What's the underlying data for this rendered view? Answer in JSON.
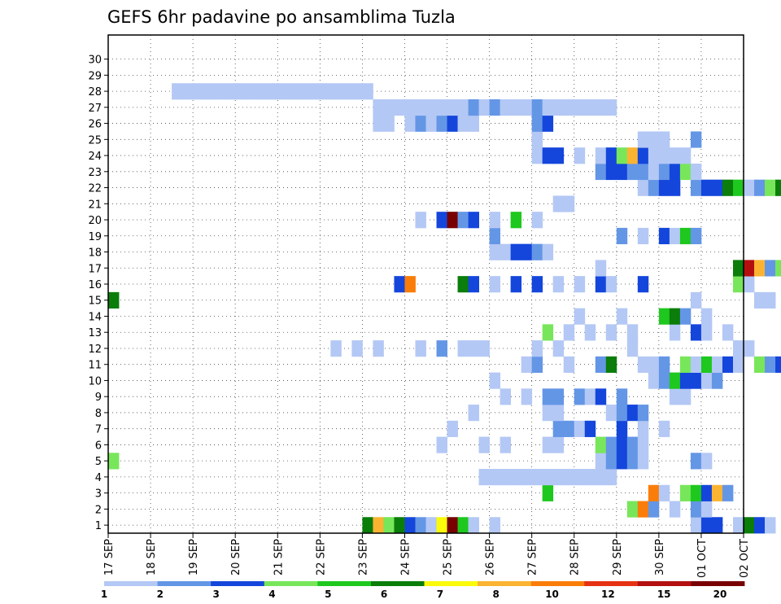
{
  "chart_data": {
    "type": "heatmap",
    "title": "GEFS 6hr padavine po ansamblima Tuzla",
    "xlabel": "",
    "ylabel": "",
    "x_start": "17 SEP",
    "x_end": "02 OCT",
    "x_step_hours": 6,
    "x_tick_labels": [
      "17 SEP",
      "18 SEP",
      "19 SEP",
      "20 SEP",
      "21 SEP",
      "22 SEP",
      "23 SEP",
      "24 SEP",
      "25 SEP",
      "26 SEP",
      "27 SEP",
      "28 SEP",
      "29 SEP",
      "30 SEP",
      "01 OCT",
      "02 OCT"
    ],
    "y_tick_labels": [
      "1",
      "2",
      "3",
      "4",
      "5",
      "6",
      "7",
      "8",
      "9",
      "10",
      "11",
      "12",
      "13",
      "14",
      "15",
      "16",
      "17",
      "18",
      "19",
      "20",
      "21",
      "22",
      "23",
      "24",
      "25",
      "26",
      "27",
      "28",
      "29",
      "30"
    ],
    "ylim": [
      0,
      30
    ],
    "grid": true,
    "colorbar": {
      "placement": "bottom",
      "tick_labels": [
        "1",
        "2",
        "3",
        "4",
        "5",
        "6",
        "7",
        "8",
        "10",
        "12",
        "15",
        "20"
      ],
      "colors": [
        "#b4c8f5",
        "#6496e6",
        "#1446dc",
        "#78e65a",
        "#1ec81e",
        "#0a7d0a",
        "#fafa0a",
        "#fab432",
        "#fa7d0a",
        "#e63214",
        "#b40f0f",
        "#780000"
      ]
    },
    "cells": [
      [
        1,
        24,
        6
      ],
      [
        1,
        25,
        8
      ],
      [
        1,
        26,
        4
      ],
      [
        1,
        27,
        6
      ],
      [
        1,
        28,
        3
      ],
      [
        1,
        29,
        2
      ],
      [
        1,
        30,
        1
      ],
      [
        1,
        31,
        7
      ],
      [
        1,
        32,
        12
      ],
      [
        1,
        33,
        5
      ],
      [
        1,
        34,
        1
      ],
      [
        1,
        36,
        1
      ],
      [
        1,
        55,
        1
      ],
      [
        1,
        56,
        3
      ],
      [
        1,
        57,
        3
      ],
      [
        1,
        59,
        1
      ],
      [
        1,
        60,
        6
      ],
      [
        1,
        61,
        3
      ],
      [
        1,
        62,
        1
      ],
      [
        1,
        64,
        1
      ],
      [
        1,
        65,
        1
      ],
      [
        1,
        66,
        1
      ],
      [
        1,
        67,
        2
      ],
      [
        1,
        68,
        1
      ],
      [
        1,
        69,
        1
      ],
      [
        2,
        49,
        4
      ],
      [
        2,
        50,
        9
      ],
      [
        2,
        51,
        2
      ],
      [
        2,
        53,
        1
      ],
      [
        2,
        55,
        2
      ],
      [
        2,
        56,
        1
      ],
      [
        3,
        41,
        5
      ],
      [
        3,
        51,
        9
      ],
      [
        3,
        52,
        1
      ],
      [
        3,
        54,
        4
      ],
      [
        3,
        55,
        5
      ],
      [
        3,
        56,
        3
      ],
      [
        3,
        57,
        8
      ],
      [
        3,
        58,
        2
      ],
      [
        4,
        35,
        1
      ],
      [
        4,
        36,
        1
      ],
      [
        4,
        37,
        1
      ],
      [
        4,
        38,
        1
      ],
      [
        4,
        39,
        1
      ],
      [
        4,
        40,
        1
      ],
      [
        4,
        41,
        1
      ],
      [
        4,
        42,
        1
      ],
      [
        4,
        43,
        1
      ],
      [
        4,
        44,
        1
      ],
      [
        4,
        45,
        1
      ],
      [
        4,
        46,
        1
      ],
      [
        4,
        47,
        1
      ],
      [
        5,
        0,
        4
      ],
      [
        5,
        46,
        1
      ],
      [
        5,
        47,
        2
      ],
      [
        5,
        48,
        3
      ],
      [
        5,
        49,
        2
      ],
      [
        5,
        50,
        1
      ],
      [
        5,
        55,
        2
      ],
      [
        5,
        56,
        1
      ],
      [
        6,
        31,
        1
      ],
      [
        6,
        35,
        1
      ],
      [
        6,
        37,
        1
      ],
      [
        6,
        41,
        1
      ],
      [
        6,
        42,
        1
      ],
      [
        6,
        46,
        4
      ],
      [
        6,
        47,
        2
      ],
      [
        6,
        48,
        3
      ],
      [
        6,
        49,
        2
      ],
      [
        6,
        50,
        1
      ],
      [
        7,
        32,
        1
      ],
      [
        7,
        42,
        2
      ],
      [
        7,
        43,
        2
      ],
      [
        7,
        44,
        1
      ],
      [
        7,
        45,
        3
      ],
      [
        7,
        48,
        3
      ],
      [
        7,
        50,
        1
      ],
      [
        7,
        52,
        1
      ],
      [
        8,
        34,
        1
      ],
      [
        8,
        41,
        1
      ],
      [
        8,
        42,
        1
      ],
      [
        8,
        47,
        1
      ],
      [
        8,
        48,
        2
      ],
      [
        8,
        49,
        3
      ],
      [
        8,
        50,
        2
      ],
      [
        9,
        37,
        1
      ],
      [
        9,
        39,
        1
      ],
      [
        9,
        41,
        2
      ],
      [
        9,
        42,
        2
      ],
      [
        9,
        44,
        2
      ],
      [
        9,
        45,
        1
      ],
      [
        9,
        46,
        3
      ],
      [
        9,
        48,
        2
      ],
      [
        9,
        53,
        1
      ],
      [
        9,
        54,
        1
      ],
      [
        10,
        36,
        1
      ],
      [
        10,
        51,
        1
      ],
      [
        10,
        52,
        2
      ],
      [
        10,
        53,
        5
      ],
      [
        10,
        54,
        3
      ],
      [
        10,
        55,
        3
      ],
      [
        10,
        56,
        1
      ],
      [
        10,
        57,
        2
      ],
      [
        11,
        39,
        1
      ],
      [
        11,
        40,
        2
      ],
      [
        11,
        43,
        1
      ],
      [
        11,
        46,
        2
      ],
      [
        11,
        47,
        6
      ],
      [
        11,
        50,
        1
      ],
      [
        11,
        51,
        1
      ],
      [
        11,
        52,
        2
      ],
      [
        11,
        54,
        4
      ],
      [
        11,
        55,
        1
      ],
      [
        11,
        56,
        5
      ],
      [
        11,
        57,
        1
      ],
      [
        11,
        58,
        3
      ],
      [
        11,
        59,
        1
      ],
      [
        11,
        61,
        4
      ],
      [
        11,
        62,
        2
      ],
      [
        11,
        63,
        3
      ],
      [
        11,
        64,
        1
      ],
      [
        11,
        65,
        4
      ],
      [
        11,
        66,
        1
      ],
      [
        11,
        67,
        1
      ],
      [
        11,
        68,
        1
      ],
      [
        11,
        69,
        1
      ],
      [
        12,
        21,
        1
      ],
      [
        12,
        23,
        1
      ],
      [
        12,
        25,
        1
      ],
      [
        12,
        29,
        1
      ],
      [
        12,
        31,
        2
      ],
      [
        12,
        33,
        1
      ],
      [
        12,
        34,
        1
      ],
      [
        12,
        35,
        1
      ],
      [
        12,
        40,
        1
      ],
      [
        12,
        42,
        1
      ],
      [
        12,
        49,
        1
      ],
      [
        12,
        59,
        1
      ],
      [
        12,
        60,
        1
      ],
      [
        12,
        64,
        1
      ],
      [
        12,
        66,
        1
      ],
      [
        13,
        41,
        4
      ],
      [
        13,
        43,
        1
      ],
      [
        13,
        45,
        1
      ],
      [
        13,
        47,
        1
      ],
      [
        13,
        49,
        1
      ],
      [
        13,
        53,
        1
      ],
      [
        13,
        55,
        3
      ],
      [
        13,
        56,
        1
      ],
      [
        13,
        58,
        1
      ],
      [
        14,
        44,
        1
      ],
      [
        14,
        48,
        1
      ],
      [
        14,
        52,
        5
      ],
      [
        14,
        53,
        6
      ],
      [
        14,
        54,
        2
      ],
      [
        14,
        56,
        1
      ],
      [
        15,
        0,
        6
      ],
      [
        15,
        55,
        1
      ],
      [
        15,
        61,
        1
      ],
      [
        15,
        62,
        1
      ],
      [
        15,
        64,
        1
      ],
      [
        15,
        65,
        3
      ],
      [
        16,
        27,
        3
      ],
      [
        16,
        28,
        9
      ],
      [
        16,
        33,
        6
      ],
      [
        16,
        34,
        3
      ],
      [
        16,
        36,
        1
      ],
      [
        16,
        38,
        3
      ],
      [
        16,
        40,
        3
      ],
      [
        16,
        42,
        1
      ],
      [
        16,
        44,
        1
      ],
      [
        16,
        46,
        3
      ],
      [
        16,
        47,
        1
      ],
      [
        16,
        50,
        3
      ],
      [
        16,
        59,
        4
      ],
      [
        16,
        60,
        1
      ],
      [
        17,
        46,
        1
      ],
      [
        17,
        59,
        6
      ],
      [
        17,
        60,
        11
      ],
      [
        17,
        61,
        8
      ],
      [
        17,
        62,
        2
      ],
      [
        17,
        63,
        4
      ],
      [
        17,
        64,
        9
      ],
      [
        17,
        65,
        5
      ],
      [
        17,
        66,
        7
      ],
      [
        18,
        36,
        1
      ],
      [
        18,
        37,
        1
      ],
      [
        18,
        38,
        3
      ],
      [
        18,
        39,
        3
      ],
      [
        18,
        40,
        2
      ],
      [
        18,
        41,
        1
      ],
      [
        19,
        36,
        2
      ],
      [
        19,
        48,
        2
      ],
      [
        19,
        50,
        1
      ],
      [
        19,
        52,
        3
      ],
      [
        19,
        53,
        1
      ],
      [
        19,
        54,
        5
      ],
      [
        19,
        55,
        2
      ],
      [
        20,
        29,
        1
      ],
      [
        20,
        31,
        3
      ],
      [
        20,
        32,
        12
      ],
      [
        20,
        33,
        2
      ],
      [
        20,
        34,
        3
      ],
      [
        20,
        36,
        1
      ],
      [
        20,
        38,
        5
      ],
      [
        20,
        40,
        1
      ],
      [
        21,
        42,
        1
      ],
      [
        21,
        43,
        1
      ],
      [
        22,
        50,
        1
      ],
      [
        22,
        51,
        2
      ],
      [
        22,
        52,
        3
      ],
      [
        22,
        53,
        3
      ],
      [
        22,
        55,
        2
      ],
      [
        22,
        56,
        3
      ],
      [
        22,
        57,
        3
      ],
      [
        22,
        58,
        6
      ],
      [
        22,
        59,
        5
      ],
      [
        22,
        60,
        1
      ],
      [
        22,
        61,
        2
      ],
      [
        22,
        62,
        4
      ],
      [
        22,
        63,
        6
      ],
      [
        22,
        65,
        1
      ],
      [
        23,
        46,
        2
      ],
      [
        23,
        47,
        3
      ],
      [
        23,
        48,
        3
      ],
      [
        23,
        49,
        2
      ],
      [
        23,
        50,
        2
      ],
      [
        23,
        51,
        1
      ],
      [
        23,
        52,
        2
      ],
      [
        23,
        53,
        3
      ],
      [
        23,
        54,
        4
      ],
      [
        23,
        55,
        1
      ],
      [
        24,
        40,
        1
      ],
      [
        24,
        41,
        3
      ],
      [
        24,
        42,
        3
      ],
      [
        24,
        44,
        1
      ],
      [
        24,
        46,
        1
      ],
      [
        24,
        47,
        3
      ],
      [
        24,
        48,
        4
      ],
      [
        24,
        49,
        8
      ],
      [
        24,
        50,
        3
      ],
      [
        24,
        51,
        1
      ],
      [
        24,
        52,
        1
      ],
      [
        24,
        53,
        1
      ],
      [
        24,
        54,
        1
      ],
      [
        25,
        40,
        1
      ],
      [
        25,
        50,
        1
      ],
      [
        25,
        51,
        1
      ],
      [
        25,
        52,
        1
      ],
      [
        25,
        55,
        2
      ],
      [
        26,
        25,
        1
      ],
      [
        26,
        26,
        1
      ],
      [
        26,
        28,
        1
      ],
      [
        26,
        29,
        2
      ],
      [
        26,
        30,
        1
      ],
      [
        26,
        31,
        2
      ],
      [
        26,
        32,
        3
      ],
      [
        26,
        33,
        1
      ],
      [
        26,
        34,
        1
      ],
      [
        26,
        40,
        2
      ],
      [
        26,
        41,
        3
      ],
      [
        27,
        25,
        1
      ],
      [
        27,
        26,
        1
      ],
      [
        27,
        27,
        1
      ],
      [
        27,
        28,
        1
      ],
      [
        27,
        29,
        1
      ],
      [
        27,
        30,
        1
      ],
      [
        27,
        31,
        1
      ],
      [
        27,
        32,
        1
      ],
      [
        27,
        33,
        1
      ],
      [
        27,
        34,
        2
      ],
      [
        27,
        35,
        1
      ],
      [
        27,
        36,
        2
      ],
      [
        27,
        37,
        1
      ],
      [
        27,
        38,
        1
      ],
      [
        27,
        39,
        1
      ],
      [
        27,
        40,
        2
      ],
      [
        27,
        41,
        1
      ],
      [
        27,
        42,
        1
      ],
      [
        27,
        43,
        1
      ],
      [
        27,
        44,
        1
      ],
      [
        27,
        45,
        1
      ],
      [
        27,
        46,
        1
      ],
      [
        27,
        47,
        1
      ],
      [
        28,
        6,
        1
      ],
      [
        28,
        7,
        1
      ],
      [
        28,
        8,
        1
      ],
      [
        28,
        9,
        1
      ],
      [
        28,
        10,
        1
      ],
      [
        28,
        11,
        1
      ],
      [
        28,
        12,
        1
      ],
      [
        28,
        13,
        1
      ],
      [
        28,
        14,
        1
      ],
      [
        28,
        15,
        1
      ],
      [
        28,
        16,
        1
      ],
      [
        28,
        17,
        1
      ],
      [
        28,
        18,
        1
      ],
      [
        28,
        19,
        1
      ],
      [
        28,
        20,
        1
      ],
      [
        28,
        21,
        1
      ],
      [
        28,
        22,
        1
      ],
      [
        28,
        23,
        1
      ],
      [
        28,
        24,
        1
      ]
    ]
  }
}
